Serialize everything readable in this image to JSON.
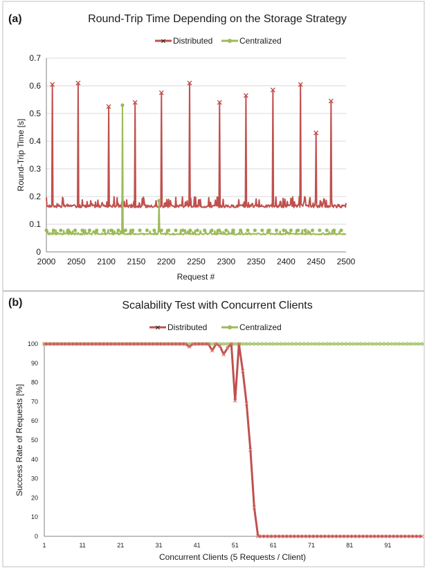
{
  "chart_data": [
    {
      "panel_label": "(a)",
      "type": "line",
      "title": "Round-Trip Time Depending on the Storage Strategy",
      "xlabel": "Request #",
      "ylabel": "Round-Trip Time [s]",
      "xlim": [
        2000,
        2500
      ],
      "ylim": [
        0,
        0.7
      ],
      "xticks": [
        "2000",
        "2050",
        "2100",
        "2150",
        "2200",
        "2250",
        "2300",
        "2350",
        "2400",
        "2450",
        "2500"
      ],
      "yticks": [
        "0",
        "0.1",
        "0.2",
        "0.3",
        "0.4",
        "0.5",
        "0.6",
        "0.7"
      ],
      "grid": "horizontal",
      "legend_position": "top-center",
      "series": [
        {
          "name": "Distributed",
          "color": "#c0504d",
          "marker": "x",
          "baseline_range": [
            0.16,
            0.2
          ],
          "spikes": [
            {
              "x": 2010,
              "y": 0.605
            },
            {
              "x": 2053,
              "y": 0.61
            },
            {
              "x": 2104,
              "y": 0.525
            },
            {
              "x": 2148,
              "y": 0.54
            },
            {
              "x": 2192,
              "y": 0.575
            },
            {
              "x": 2239,
              "y": 0.61
            },
            {
              "x": 2289,
              "y": 0.54
            },
            {
              "x": 2333,
              "y": 0.565
            },
            {
              "x": 2378,
              "y": 0.585
            },
            {
              "x": 2424,
              "y": 0.605
            },
            {
              "x": 2450,
              "y": 0.43
            },
            {
              "x": 2475,
              "y": 0.545
            }
          ]
        },
        {
          "name": "Centralized",
          "color": "#9bbb59",
          "marker": "diamond",
          "baseline_range": [
            0.062,
            0.082
          ],
          "spikes": [
            {
              "x": 2127,
              "y": 0.53
            },
            {
              "x": 2188,
              "y": 0.185
            }
          ]
        }
      ]
    },
    {
      "panel_label": "(b)",
      "type": "line",
      "title": "Scalability Test with Concurrent Clients",
      "xlabel": "Concurrent Clients (5 Requests / Client)",
      "ylabel": "Success Rate of Requests [%]",
      "xlim": [
        1,
        100
      ],
      "ylim": [
        0,
        100
      ],
      "xticks": [
        "1",
        "11",
        "21",
        "31",
        "41",
        "51",
        "61",
        "71",
        "81",
        "91"
      ],
      "yticks": [
        "0",
        "10",
        "20",
        "30",
        "40",
        "50",
        "60",
        "70",
        "80",
        "90",
        "100"
      ],
      "grid": "none",
      "legend_position": "top-center",
      "series": [
        {
          "name": "Distributed",
          "color": "#c0504d",
          "marker": "x",
          "points": [
            [
              1,
              100
            ],
            [
              38,
              100
            ],
            [
              39,
              98.5
            ],
            [
              40,
              100
            ],
            [
              44,
              100
            ],
            [
              45,
              96.5
            ],
            [
              46,
              100
            ],
            [
              47,
              99
            ],
            [
              48,
              94.5
            ],
            [
              49,
              98
            ],
            [
              50,
              100
            ],
            [
              51,
              70.5
            ],
            [
              52,
              100
            ],
            [
              53,
              86
            ],
            [
              54,
              69
            ],
            [
              55,
              45
            ],
            [
              56,
              15
            ],
            [
              57,
              0
            ],
            [
              100,
              0
            ]
          ]
        },
        {
          "name": "Centralized",
          "color": "#9bbb59",
          "marker": "diamond",
          "points": [
            [
              1,
              100
            ],
            [
              100,
              100
            ]
          ]
        }
      ]
    }
  ]
}
